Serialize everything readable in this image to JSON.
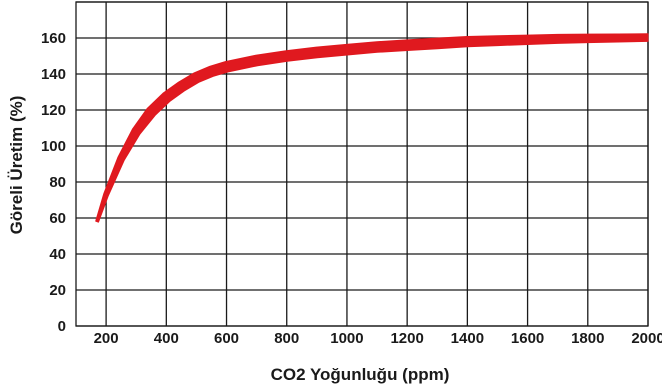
{
  "chart_data": {
    "type": "line",
    "title": "",
    "xlabel": "CO2 Yoğunluğu (ppm)",
    "ylabel": "Göreli Üretim (%)",
    "xlim": [
      100,
      2000
    ],
    "ylim": [
      0,
      180
    ],
    "x_ticks": [
      200,
      400,
      600,
      800,
      1000,
      1200,
      1400,
      1600,
      1800,
      2000
    ],
    "y_ticks": [
      0,
      20,
      40,
      60,
      80,
      100,
      120,
      140,
      160
    ],
    "grid": true,
    "legend": "none",
    "series": [
      {
        "color": "#e0191f",
        "x": [
          170,
          200,
          250,
          300,
          350,
          400,
          450,
          500,
          550,
          600,
          700,
          800,
          900,
          1000,
          1100,
          1200,
          1300,
          1400,
          1500,
          1600,
          1700,
          1800,
          1900,
          2000
        ],
        "y": [
          58,
          73,
          93,
          108,
          119,
          127,
          133,
          138,
          141.5,
          144,
          147.5,
          150,
          152,
          153.5,
          155,
          156,
          157,
          158,
          158.5,
          159,
          159.5,
          159.8,
          160,
          160.2
        ]
      }
    ]
  }
}
